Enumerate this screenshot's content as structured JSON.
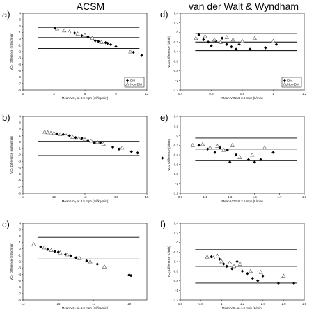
{
  "column_titles": [
    "ACSM",
    "van der Walt & Wyndham"
  ],
  "chart_data": [
    {
      "type": "scatter",
      "panel_label": "a)",
      "xlabel": "Mean VO₂ at 3.0 mph (ml/kg/min)",
      "ylabel": "VO₂ Difference (ml/kg/min)",
      "xlim": [
        0,
        12
      ],
      "ylim": [
        -8,
        4
      ],
      "xticks": [
        0,
        3,
        6,
        9,
        12
      ],
      "yticks": [
        -8,
        -7,
        -6,
        -5,
        -4,
        -3,
        -2,
        -1,
        0,
        1,
        2,
        3,
        4
      ],
      "xtick_labels": [
        "0",
        "3",
        "6",
        "9",
        "12"
      ],
      "ytick_labels": [
        "-8",
        "-7",
        "-6",
        "-5",
        "-4",
        "-3",
        "-2",
        "-1",
        "0",
        "1",
        "2",
        "3",
        "4"
      ],
      "hlines": [
        1.8,
        0.2,
        -1.5
      ],
      "legend": {
        "entries": [
          "DM",
          "Non-DM"
        ],
        "placement": "bottom-right"
      },
      "series": [
        {
          "name": "DM",
          "marker": "diamond",
          "points": [
            [
              3.1,
              1.7
            ],
            [
              5.0,
              0.9
            ],
            [
              5.7,
              0.5
            ],
            [
              6.3,
              0.3
            ],
            [
              7.0,
              -0.3
            ],
            [
              7.3,
              -0.4
            ],
            [
              8.0,
              -0.6
            ],
            [
              8.2,
              -0.7
            ],
            [
              8.5,
              -0.9
            ],
            [
              9.0,
              -1.2
            ],
            [
              10.7,
              -2.1
            ],
            [
              11.5,
              -2.6
            ]
          ]
        },
        {
          "name": "Non-DM",
          "marker": "triangle",
          "points": [
            [
              3.3,
              1.6
            ],
            [
              4.0,
              1.3
            ],
            [
              4.5,
              1.1
            ],
            [
              5.3,
              0.8
            ],
            [
              6.0,
              0.6
            ],
            [
              6.7,
              0.1
            ],
            [
              7.6,
              -0.5
            ],
            [
              10.4,
              -2.0
            ]
          ]
        }
      ]
    },
    {
      "type": "scatter",
      "panel_label": "b)",
      "xlabel": "Mean VO₂ at 3.5 mph (ml/kg/min)",
      "ylabel": "VO₂ Difference (ml/kg/min)",
      "xlim": [
        11,
        15
      ],
      "ylim": [
        -8,
        4
      ],
      "xticks": [
        11,
        12,
        13,
        14,
        15
      ],
      "yticks": [
        -8,
        -7,
        -6,
        -5,
        -4,
        -3,
        -2,
        -1,
        0,
        1,
        2,
        3,
        4
      ],
      "xtick_labels": [
        "11",
        "12",
        "13",
        "14",
        "15"
      ],
      "ytick_labels": [
        "-8",
        "-7",
        "-6",
        "-5",
        "-4",
        "-3",
        "-2",
        "-1",
        "0",
        "1",
        "2",
        "3",
        "4"
      ],
      "hlines": [
        2.2,
        0.1,
        -2.1
      ],
      "series": [
        {
          "name": "DM",
          "marker": "diamond",
          "points": [
            [
              12.1,
              1.3
            ],
            [
              12.3,
              1.2
            ],
            [
              12.5,
              1.0
            ],
            [
              12.7,
              0.7
            ],
            [
              12.9,
              0.6
            ],
            [
              13.1,
              0.3
            ],
            [
              13.3,
              -0.1
            ],
            [
              13.5,
              -0.1
            ],
            [
              13.9,
              -0.8
            ],
            [
              14.1,
              -1.1
            ],
            [
              14.5,
              -1.5
            ],
            [
              14.7,
              -1.7
            ],
            [
              15.5,
              -2.5
            ]
          ]
        },
        {
          "name": "Non-DM",
          "marker": "triangle",
          "points": [
            [
              11.7,
              1.6
            ],
            [
              11.8,
              1.5
            ],
            [
              11.9,
              1.4
            ],
            [
              12.0,
              1.4
            ],
            [
              12.2,
              1.2
            ],
            [
              12.4,
              1.0
            ],
            [
              12.6,
              0.8
            ],
            [
              12.8,
              0.6
            ],
            [
              13.0,
              0.4
            ],
            [
              13.2,
              0.2
            ],
            [
              13.4,
              0.0
            ],
            [
              13.6,
              -0.3
            ],
            [
              14.2,
              -0.9
            ]
          ]
        }
      ]
    },
    {
      "type": "scatter",
      "panel_label": "c)",
      "xlabel": "Mean VO₂ at 4.0 mph (ml/kg/min)",
      "ylabel": "VO₂ Difference (ml/kg/min)",
      "xlim": [
        13,
        20
      ],
      "ylim": [
        -8,
        4
      ],
      "xticks": [
        13,
        15,
        17,
        19
      ],
      "yticks": [
        -8,
        -7,
        -6,
        -5,
        -4,
        -3,
        -2,
        -1,
        0,
        1,
        2,
        3,
        4
      ],
      "xtick_labels": [
        "13",
        "15",
        "17",
        "19"
      ],
      "ytick_labels": [
        "-8",
        "-7",
        "-6",
        "-5",
        "-4",
        "-3",
        "-2",
        "-1",
        "0",
        "1",
        "2",
        "3",
        "4"
      ],
      "hlines": [
        1.8,
        -1.6,
        -4.9
      ],
      "series": [
        {
          "name": "DM",
          "marker": "diamond",
          "points": [
            [
              14.0,
              0.3
            ],
            [
              14.4,
              -0.1
            ],
            [
              14.8,
              -0.4
            ],
            [
              15.0,
              -0.5
            ],
            [
              15.4,
              -0.9
            ],
            [
              15.7,
              -1.1
            ],
            [
              16.0,
              -1.4
            ],
            [
              16.6,
              -1.9
            ],
            [
              17.2,
              -2.4
            ],
            [
              19.0,
              -4.1
            ],
            [
              19.1,
              -4.2
            ]
          ]
        },
        {
          "name": "Non-DM",
          "marker": "triangle",
          "points": [
            [
              13.6,
              0.7
            ],
            [
              14.2,
              0.2
            ],
            [
              14.6,
              -0.2
            ],
            [
              15.1,
              -0.6
            ],
            [
              15.5,
              -0.9
            ],
            [
              16.2,
              -1.5
            ],
            [
              16.8,
              -2.0
            ],
            [
              17.6,
              -2.8
            ]
          ]
        }
      ]
    },
    {
      "type": "scatter",
      "panel_label": "d)",
      "xlabel": "Mean VO2 at 3.0 mph (L/min)",
      "ylabel": "VO2 Difference (L/min)",
      "xlim": [
        0.4,
        1.2
      ],
      "ylim": [
        -1.2,
        0.4
      ],
      "xticks": [
        0.4,
        0.6,
        0.8,
        1.0,
        1.2
      ],
      "yticks": [
        -1.2,
        -1.0,
        -0.8,
        -0.6,
        -0.4,
        -0.2,
        0.0,
        0.2,
        0.4
      ],
      "xtick_labels": [
        "0.4",
        "0.6",
        "0.8",
        "1",
        "1.2"
      ],
      "ytick_labels": [
        "-1.2",
        "-1",
        "-0.8",
        "-0.6",
        "-0.4",
        "-0.2",
        "0",
        "0.2",
        "0.4"
      ],
      "hlines": [
        -0.02,
        -0.2,
        -0.38
      ],
      "legend": {
        "entries": [
          "DM",
          "Non-DM"
        ],
        "placement": "bottom-right"
      },
      "series": [
        {
          "name": "DM",
          "marker": "diamond",
          "points": [
            [
              0.52,
              -0.05
            ],
            [
              0.55,
              -0.15
            ],
            [
              0.58,
              -0.2
            ],
            [
              0.6,
              -0.28
            ],
            [
              0.63,
              -0.18
            ],
            [
              0.67,
              -0.12
            ],
            [
              0.7,
              -0.25
            ],
            [
              0.73,
              -0.3
            ],
            [
              0.76,
              -0.35
            ],
            [
              0.78,
              -0.25
            ],
            [
              0.85,
              -0.35
            ],
            [
              0.95,
              -0.32
            ],
            [
              1.02,
              -0.25
            ]
          ]
        },
        {
          "name": "Non-DM",
          "marker": "triangle",
          "points": [
            [
              0.5,
              -0.12
            ],
            [
              0.56,
              -0.08
            ],
            [
              0.62,
              -0.15
            ],
            [
              0.66,
              -0.2
            ],
            [
              0.7,
              -0.1
            ],
            [
              0.74,
              -0.15
            ],
            [
              0.8,
              -0.18
            ],
            [
              0.88,
              -0.12
            ],
            [
              1.0,
              -0.18
            ]
          ]
        }
      ]
    },
    {
      "type": "scatter",
      "panel_label": "e)",
      "xlabel": "Mean VO2 at 3.5 mph (L/min)",
      "ylabel": "VO2 Difference (L/min)",
      "xlim": [
        0.9,
        1.9
      ],
      "ylim": [
        -1.2,
        0.4
      ],
      "xticks": [
        0.9,
        1.1,
        1.3,
        1.5,
        1.7,
        1.9
      ],
      "yticks": [
        -1.2,
        -1.0,
        -0.8,
        -0.6,
        -0.4,
        -0.2,
        0.0,
        0.2,
        0.4
      ],
      "xtick_labels": [
        "0.9",
        "1.1",
        "1.3",
        "1.5",
        "1.7",
        "1.9"
      ],
      "ytick_labels": [
        "-1.2",
        "-1",
        "-0.8",
        "-0.6",
        "-0.4",
        "-0.2",
        "0",
        "0.2",
        "0.4"
      ],
      "hlines": [
        -0.05,
        -0.28,
        -0.52
      ],
      "series": [
        {
          "name": "DM",
          "marker": "diamond",
          "points": [
            [
              1.05,
              -0.2
            ],
            [
              1.12,
              -0.28
            ],
            [
              1.18,
              -0.35
            ],
            [
              1.22,
              -0.25
            ],
            [
              1.28,
              -0.3
            ],
            [
              1.3,
              -0.55
            ],
            [
              1.35,
              -0.4
            ],
            [
              1.45,
              -0.5
            ],
            [
              1.5,
              -0.55
            ],
            [
              1.55,
              -0.5
            ],
            [
              1.65,
              -0.35
            ]
          ]
        },
        {
          "name": "Non-DM",
          "marker": "triangle",
          "points": [
            [
              1.0,
              -0.2
            ],
            [
              1.08,
              -0.18
            ],
            [
              1.14,
              -0.25
            ],
            [
              1.2,
              -0.22
            ],
            [
              1.25,
              -0.3
            ],
            [
              1.32,
              -0.2
            ],
            [
              1.38,
              -0.45
            ],
            [
              1.48,
              -0.4
            ],
            [
              1.58,
              -0.25
            ]
          ]
        }
      ]
    },
    {
      "type": "scatter",
      "panel_label": "f)",
      "xlabel": "Mean VO₂ at 4.0 mph (L/min)",
      "ylabel": "VO₂ Difference (L/min)",
      "xlim": [
        0.6,
        1.8
      ],
      "ylim": [
        -1.2,
        0.4
      ],
      "xticks": [
        0.6,
        0.8,
        1.0,
        1.2,
        1.4,
        1.6,
        1.8
      ],
      "yticks": [
        -1.2,
        -1.0,
        -0.8,
        -0.6,
        -0.4,
        -0.2,
        0.0,
        0.2,
        0.4
      ],
      "xtick_labels": [
        "0.6",
        "0.8",
        "1",
        "1.2",
        "1.4",
        "1.6",
        "1.8"
      ],
      "ytick_labels": [
        "-1.2",
        "-1",
        "-0.8",
        "-0.6",
        "-0.4",
        "-0.2",
        "0",
        "0.2",
        "0.4"
      ],
      "hlines": [
        -0.15,
        -0.5,
        -0.85
      ],
      "series": [
        {
          "name": "DM",
          "marker": "diamond",
          "points": [
            [
              0.9,
              -0.3
            ],
            [
              0.98,
              -0.35
            ],
            [
              1.02,
              -0.45
            ],
            [
              1.05,
              -0.5
            ],
            [
              1.1,
              -0.55
            ],
            [
              1.15,
              -0.4
            ],
            [
              1.2,
              -0.6
            ],
            [
              1.25,
              -0.65
            ],
            [
              1.3,
              -0.75
            ],
            [
              1.35,
              -0.8
            ],
            [
              1.4,
              -0.7
            ],
            [
              1.55,
              -0.85
            ],
            [
              1.7,
              -0.85
            ]
          ]
        },
        {
          "name": "Non-DM",
          "marker": "triangle",
          "points": [
            [
              0.86,
              -0.3
            ],
            [
              0.92,
              -0.32
            ],
            [
              0.96,
              -0.28
            ],
            [
              1.0,
              -0.4
            ],
            [
              1.08,
              -0.42
            ],
            [
              1.12,
              -0.5
            ],
            [
              1.18,
              -0.45
            ],
            [
              1.28,
              -0.6
            ],
            [
              1.38,
              -0.62
            ],
            [
              1.6,
              -0.7
            ]
          ]
        }
      ]
    }
  ]
}
